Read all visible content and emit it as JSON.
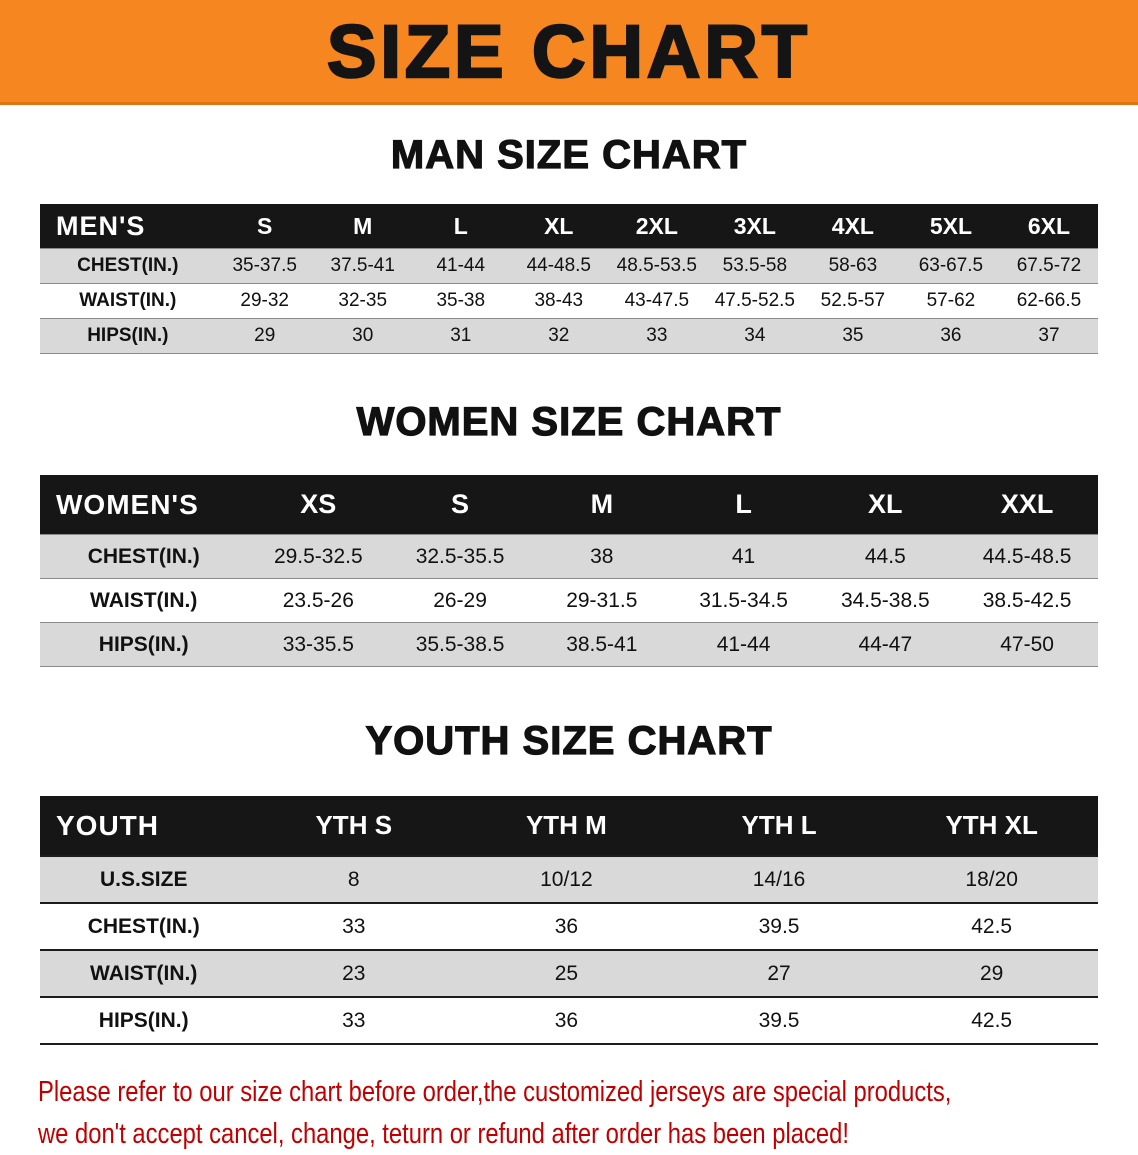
{
  "banner": {
    "title": "SIZE CHART"
  },
  "colors": {
    "banner_bg": "#f6861f",
    "table_header_bg": "#161616",
    "row_alt_bg": "#d9d9d9",
    "footer_text": "#c00000"
  },
  "chart_data": [
    {
      "type": "table",
      "title": "MAN SIZE CHART",
      "corner_label": "MEN'S",
      "columns": [
        "S",
        "M",
        "L",
        "XL",
        "2XL",
        "3XL",
        "4XL",
        "5XL",
        "6XL"
      ],
      "rows": [
        {
          "label": "CHEST(IN.)",
          "values": [
            "35-37.5",
            "37.5-41",
            "41-44",
            "44-48.5",
            "48.5-53.5",
            "53.5-58",
            "58-63",
            "63-67.5",
            "67.5-72"
          ]
        },
        {
          "label": "WAIST(IN.)",
          "values": [
            "29-32",
            "32-35",
            "35-38",
            "38-43",
            "43-47.5",
            "47.5-52.5",
            "52.5-57",
            "57-62",
            "62-66.5"
          ]
        },
        {
          "label": "HIPS(IN.)",
          "values": [
            "29",
            "30",
            "31",
            "32",
            "33",
            "34",
            "35",
            "36",
            "37"
          ]
        }
      ]
    },
    {
      "type": "table",
      "title": "WOMEN SIZE CHART",
      "corner_label": "WOMEN'S",
      "columns": [
        "XS",
        "S",
        "M",
        "L",
        "XL",
        "XXL"
      ],
      "rows": [
        {
          "label": "CHEST(IN.)",
          "values": [
            "29.5-32.5",
            "32.5-35.5",
            "38",
            "41",
            "44.5",
            "44.5-48.5"
          ]
        },
        {
          "label": "WAIST(IN.)",
          "values": [
            "23.5-26",
            "26-29",
            "29-31.5",
            "31.5-34.5",
            "34.5-38.5",
            "38.5-42.5"
          ]
        },
        {
          "label": "HIPS(IN.)",
          "values": [
            "33-35.5",
            "35.5-38.5",
            "38.5-41",
            "41-44",
            "44-47",
            "47-50"
          ]
        }
      ]
    },
    {
      "type": "table",
      "title": "YOUTH SIZE CHART",
      "corner_label": "YOUTH",
      "columns": [
        "YTH S",
        "YTH M",
        "YTH L",
        "YTH XL"
      ],
      "rows": [
        {
          "label": "U.S.SIZE",
          "values": [
            "8",
            "10/12",
            "14/16",
            "18/20"
          ]
        },
        {
          "label": "CHEST(IN.)",
          "values": [
            "33",
            "36",
            "39.5",
            "42.5"
          ]
        },
        {
          "label": "WAIST(IN.)",
          "values": [
            "23",
            "25",
            "27",
            "29"
          ]
        },
        {
          "label": "HIPS(IN.)",
          "values": [
            "33",
            "36",
            "39.5",
            "42.5"
          ]
        }
      ]
    }
  ],
  "footer": {
    "line1": "Please refer to our size chart before order,the customized jerseys are special products,",
    "line2": "we don't accept cancel, change, teturn or refund after order has been placed!"
  }
}
